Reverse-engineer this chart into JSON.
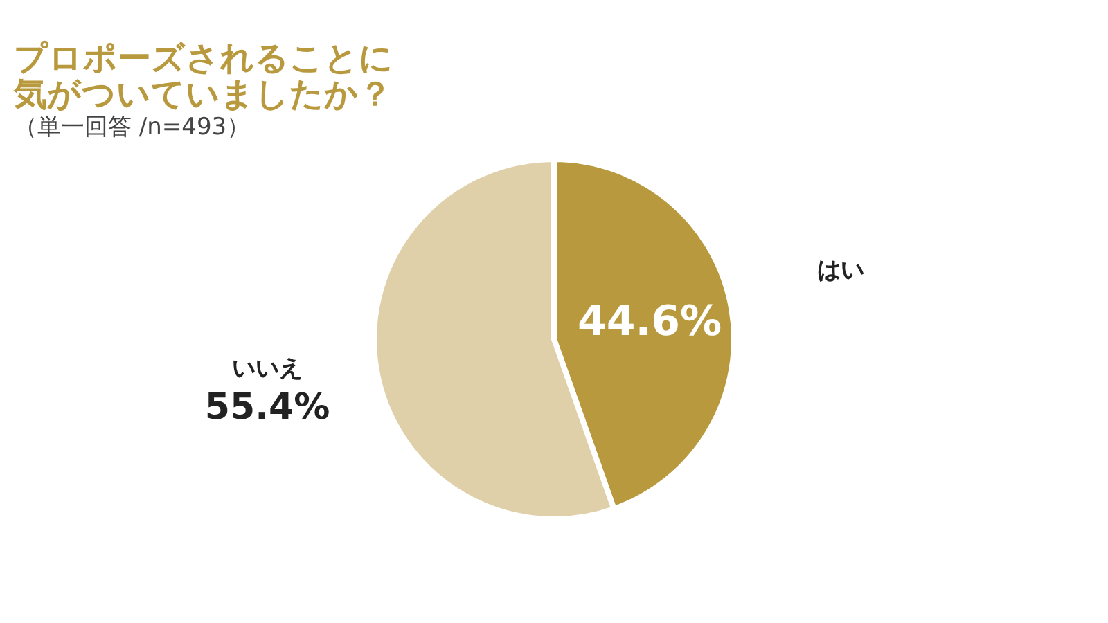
{
  "chart_data": {
    "type": "pie",
    "title": [
      "プロポーズされることに",
      "気がついていましたか？"
    ],
    "subtitle": "（単一回答 /n=493）",
    "categories": [
      "はい",
      "いいえ"
    ],
    "values": [
      44.6,
      55.4
    ],
    "value_labels": [
      "44.6%",
      "55.4%"
    ],
    "colors": [
      "#b8993d",
      "#dfd0a9"
    ],
    "legend": false
  }
}
